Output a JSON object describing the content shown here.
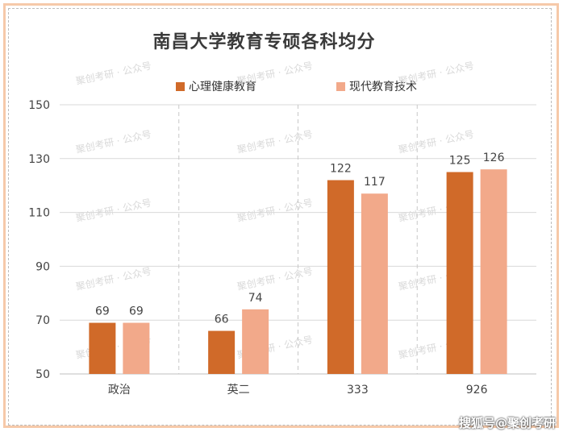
{
  "chart_data": {
    "type": "bar",
    "title": "南昌大学教育专硕各科均分",
    "categories": [
      "政治",
      "英二",
      "333",
      "926"
    ],
    "series": [
      {
        "name": "心理健康教育",
        "values": [
          69,
          66,
          122,
          125
        ],
        "color": "#d06a29"
      },
      {
        "name": "现代教育技术",
        "values": [
          69,
          74,
          117,
          126
        ],
        "color": "#f2a98a"
      }
    ],
    "ylim": [
      50,
      150
    ],
    "yticks": [
      50,
      70,
      90,
      110,
      130,
      150
    ],
    "grid": true,
    "legend_position": "top"
  },
  "watermark": "搜狐号@聚创考研",
  "background_watermark": "聚创考研 · 公众号"
}
